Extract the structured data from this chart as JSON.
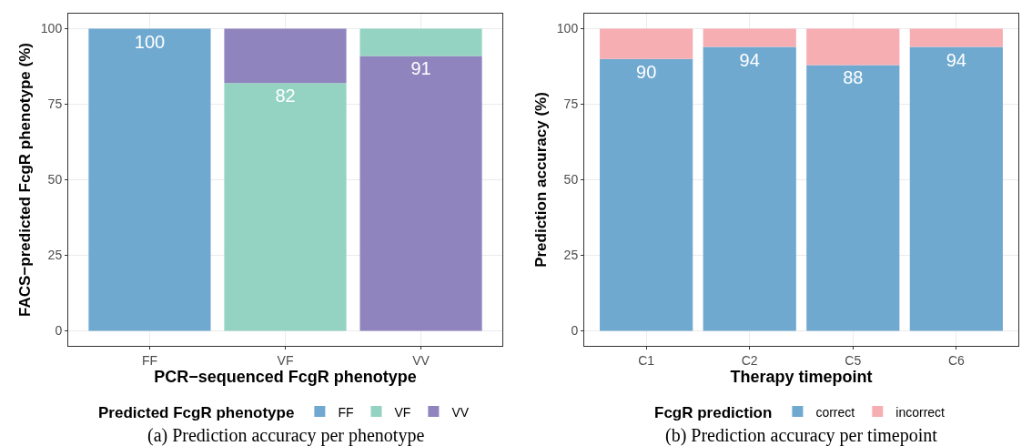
{
  "chart_data": [
    {
      "type": "bar",
      "stacked": true,
      "categories": [
        "FF",
        "VF",
        "VV"
      ],
      "xlabel": "PCR−sequenced FcgR phenotype",
      "ylabel": "FACS−predicted FcgR phenotype (%)",
      "legend_title": "Predicted FcgR phenotype",
      "legend": "bottom",
      "grid": true,
      "ylim": [
        -5,
        105
      ],
      "yticks": [
        0,
        25,
        50,
        75,
        100
      ],
      "series": [
        {
          "name": "FF",
          "color": "#6fa9d0",
          "values": [
            100,
            null,
            null
          ],
          "value_labels": [
            "100",
            null,
            null
          ]
        },
        {
          "name": "VF",
          "color": "#94d3c1",
          "values": [
            null,
            82,
            null
          ],
          "value_labels": [
            null,
            "82",
            null
          ]
        },
        {
          "name": "VV",
          "color": "#8f84bd",
          "values": [
            null,
            18,
            91
          ],
          "value_labels": [
            null,
            null,
            "91"
          ]
        },
        {
          "color": "#94d3c1",
          "values": [
            null,
            null,
            9
          ]
        }
      ],
      "annotations": [
        "(a) Prediction accuracy per phenotype"
      ]
    },
    {
      "type": "bar",
      "stacked": true,
      "categories": [
        "C1",
        "C2",
        "C5",
        "C6"
      ],
      "xlabel": "Therapy timepoint",
      "ylabel": "Prediction accuracy (%)",
      "legend_title": "FcgR prediction",
      "legend": "bottom",
      "grid": true,
      "ylim": [
        -5,
        105
      ],
      "yticks": [
        0,
        25,
        50,
        75,
        100
      ],
      "series": [
        {
          "name": "correct",
          "color": "#6fa9d0",
          "values": [
            90,
            94,
            88,
            94
          ],
          "value_labels": [
            "90",
            "94",
            "88",
            "94"
          ]
        },
        {
          "name": "incorrect",
          "color": "#f7aeb3",
          "values": [
            10,
            6,
            12,
            6
          ]
        }
      ],
      "annotations": [
        "(b) Prediction accuracy per timepoint"
      ]
    }
  ]
}
